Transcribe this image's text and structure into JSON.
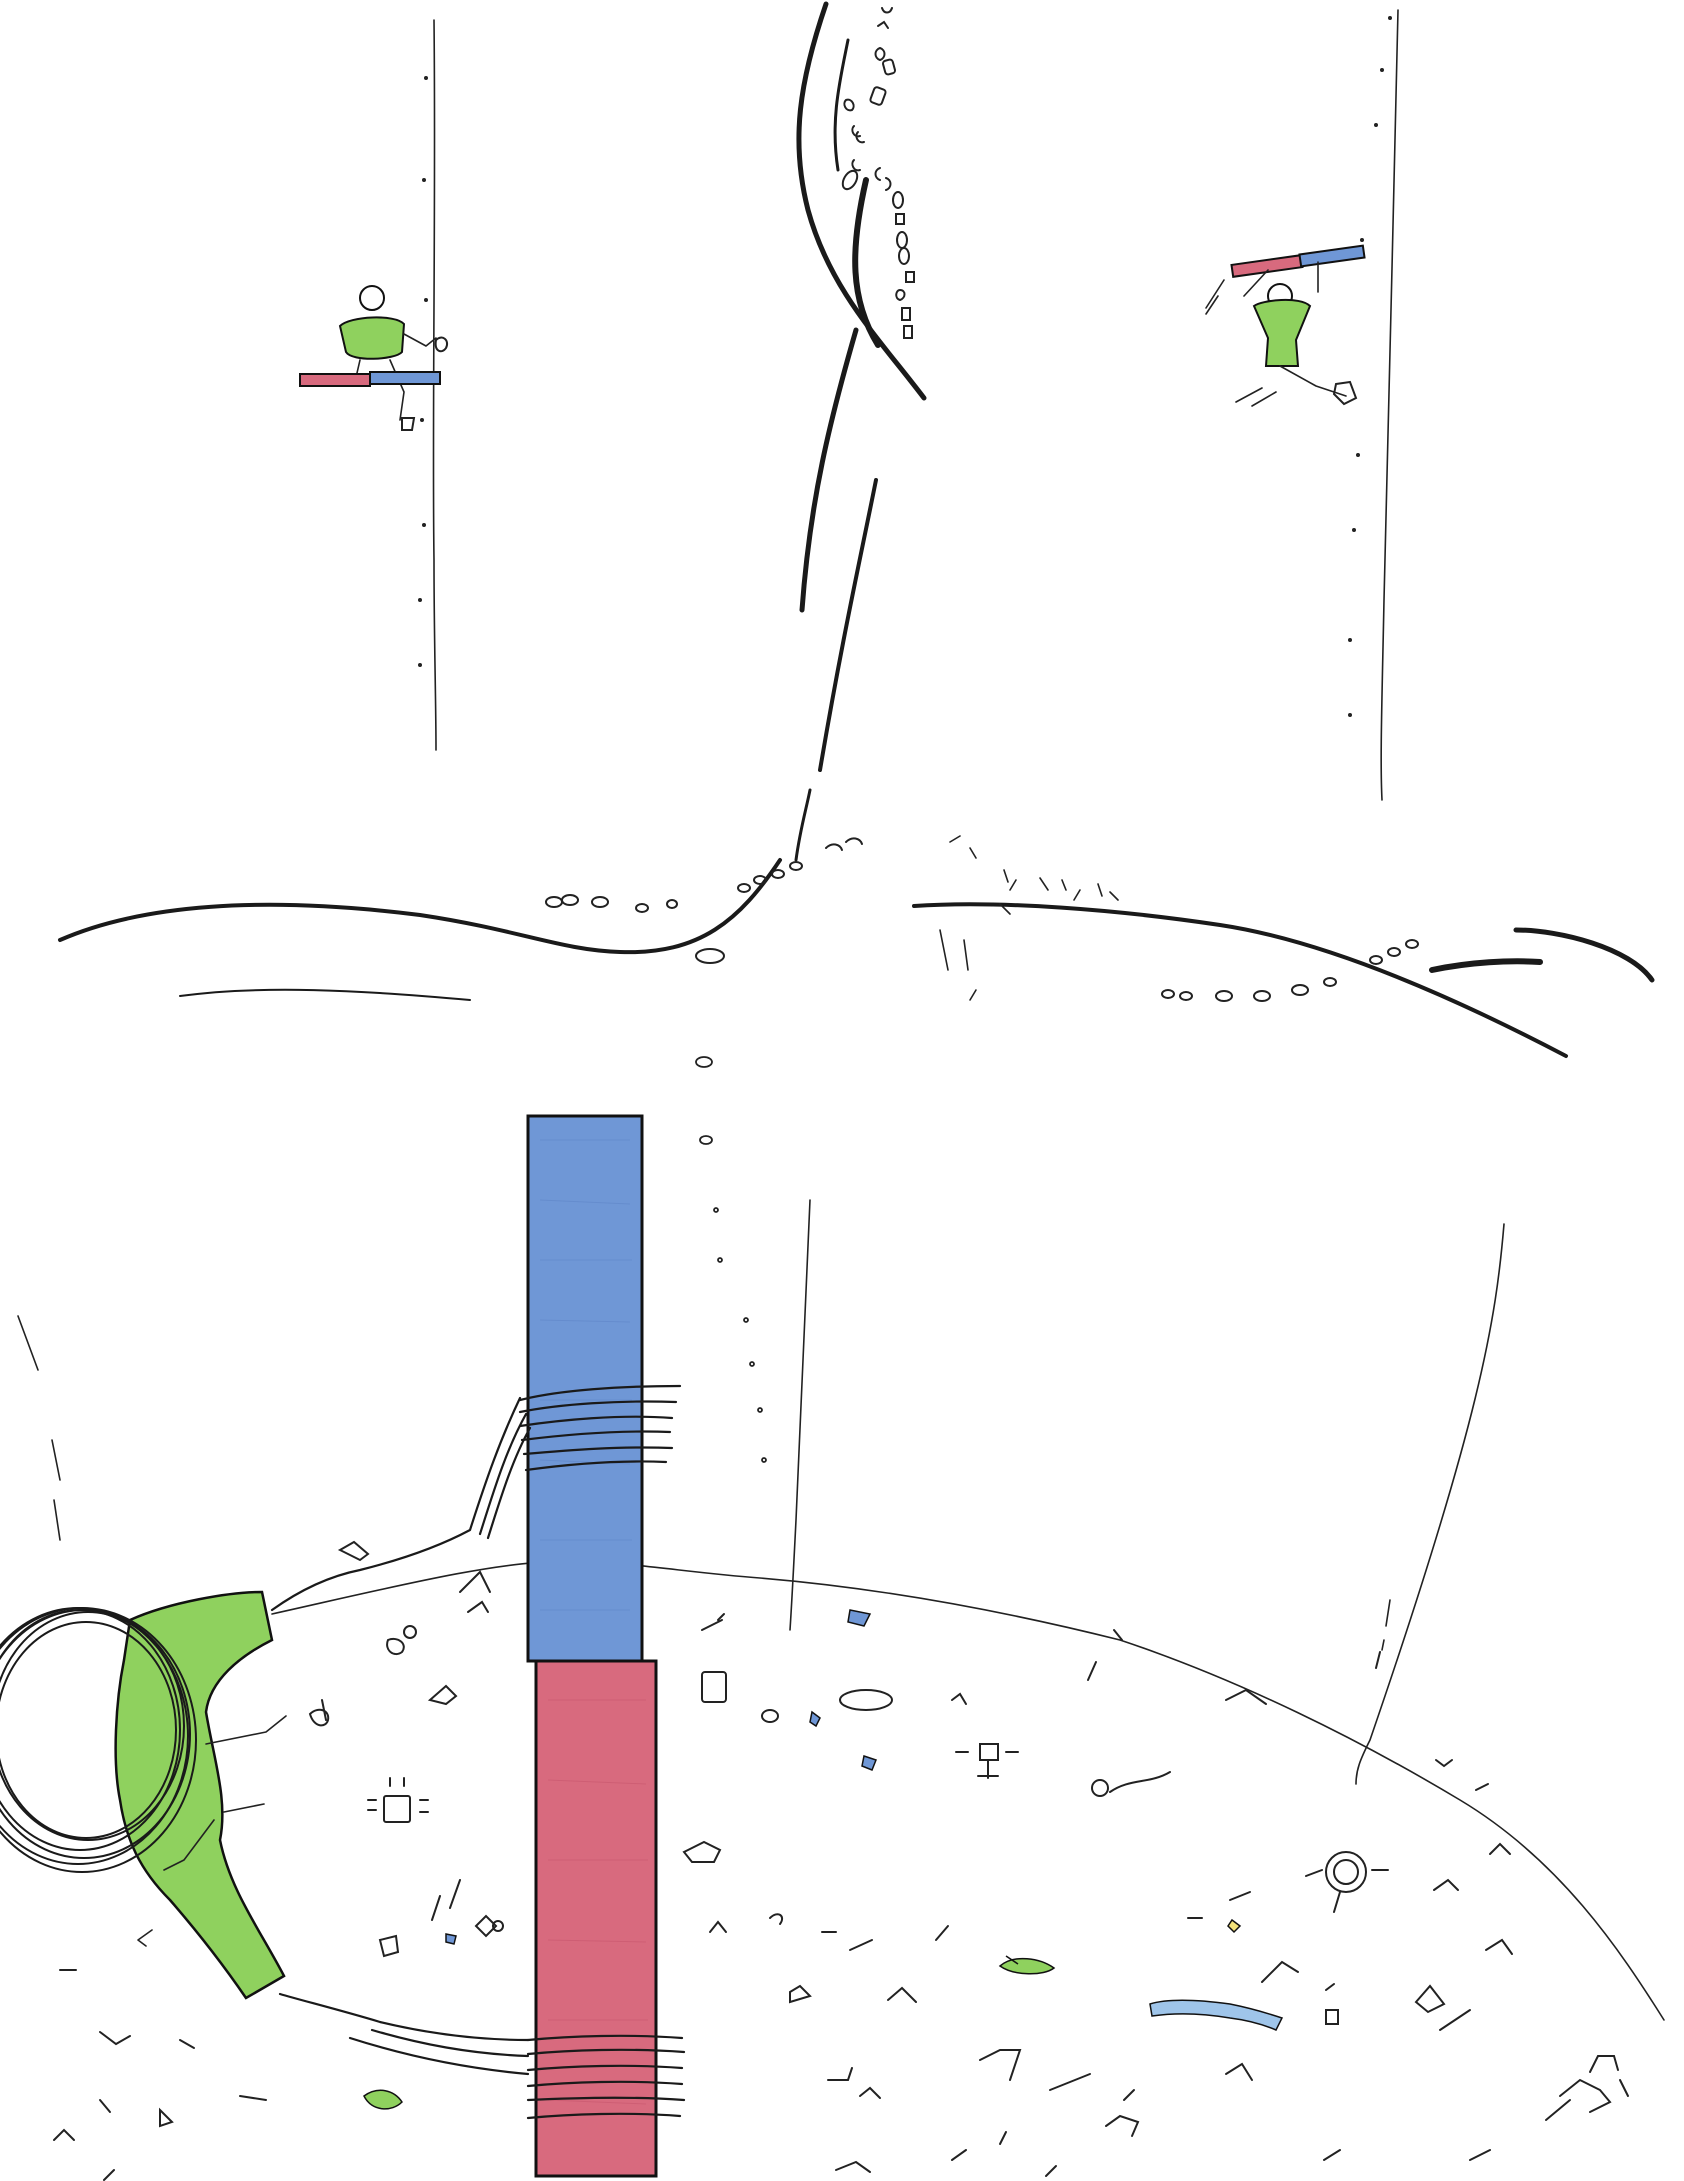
{
  "drawing": {
    "colors": {
      "paper": "#ffffff",
      "ink": "#1a1a1a",
      "magnet_north": "#6f97d6",
      "magnet_south": "#d86a7e",
      "shirt_green": "#8fd15e"
    },
    "figures": [
      {
        "name": "figure-left",
        "icon": "person-holding-magnet"
      },
      {
        "name": "figure-right",
        "icon": "person-swinging-magnet"
      }
    ],
    "magnet": {
      "north_color_name": "blue",
      "south_color_name": "red"
    },
    "claw": {
      "icon": "green-claw-with-wire-coil"
    }
  }
}
